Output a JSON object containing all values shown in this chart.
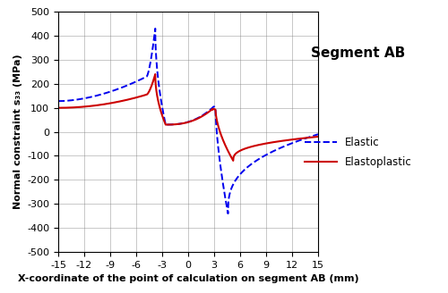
{
  "title": "Segment AB",
  "xlabel": "X-coordinate of the point of calculation on segment AB (mm)",
  "ylabel": "Normal constraint s₃₃ (MPa)",
  "xlim": [
    -15,
    15
  ],
  "ylim": [
    -500,
    500
  ],
  "xticks": [
    -15,
    -12,
    -9,
    -6,
    -3,
    0,
    3,
    6,
    9,
    12,
    15
  ],
  "yticks": [
    -500,
    -400,
    -300,
    -200,
    -100,
    0,
    100,
    200,
    300,
    400,
    500
  ],
  "elastic_color": "#0000EE",
  "elastoplastic_color": "#CC0000",
  "legend_elastic": "Elastic",
  "legend_elastoplastic": "Elastoplastic",
  "background_color": "#ffffff",
  "title_fontsize": 11,
  "label_fontsize": 8,
  "tick_fontsize": 8
}
